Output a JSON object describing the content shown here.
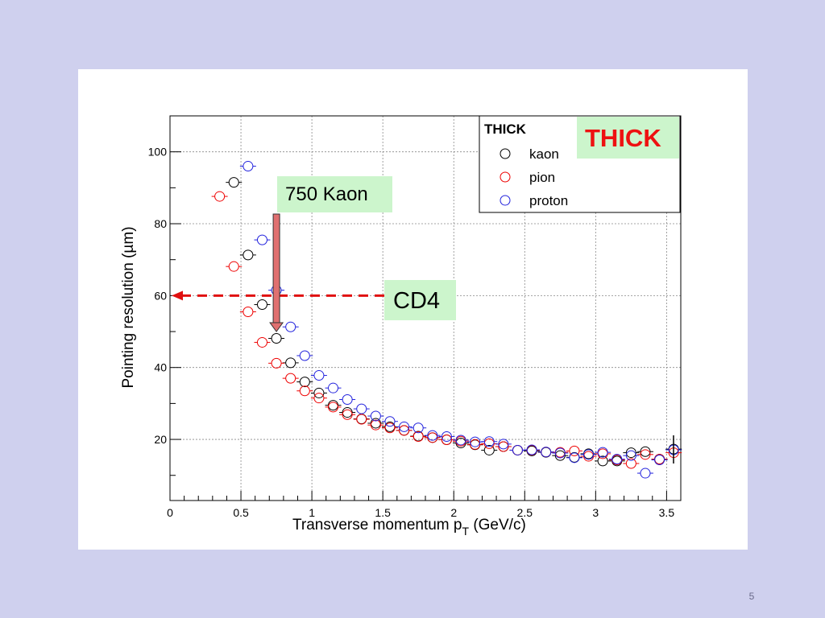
{
  "slide": {
    "background": "#cfd0ee",
    "page_number": "5"
  },
  "annotations": {
    "kaon_label": "750 Kaon",
    "cd4_label": "CD4",
    "thick_label": "THICK",
    "note_background": "#ccf5cc",
    "thick_color": "#ee1111",
    "arrow_color": "#e07070",
    "dashed_line_color": "#e01010",
    "dashed_line_y": 60,
    "arrow_x": 0.75
  },
  "chart_data": {
    "type": "scatter",
    "title": "",
    "xlabel": "Transverse momentum p_T (GeV/c)",
    "xlabel_main": "Transverse momentum p",
    "xlabel_sub": "T",
    "xlabel_tail": " (GeV/c)",
    "ylabel": "Pointing resolution (µm)",
    "xlim": [
      0,
      3.6
    ],
    "ylim": [
      3,
      110
    ],
    "x_ticks": [
      0,
      0.5,
      1,
      1.5,
      2,
      2.5,
      3,
      3.5
    ],
    "x_tick_labels": [
      "0",
      "0.5",
      "1",
      "1.5",
      "2",
      "2.5",
      "3",
      "3.5"
    ],
    "y_ticks": [
      20,
      40,
      60,
      80,
      100
    ],
    "y_tick_labels": [
      "20",
      "40",
      "60",
      "80",
      "100"
    ],
    "grid": true,
    "legend": {
      "title": "THICK",
      "position": "top-right"
    },
    "series": [
      {
        "name": "kaon",
        "color": "#000000",
        "x": [
          0.45,
          0.55,
          0.65,
          0.75,
          0.85,
          0.95,
          1.05,
          1.15,
          1.25,
          1.35,
          1.45,
          1.55,
          1.65,
          1.75,
          1.85,
          1.95,
          2.05,
          2.15,
          2.25,
          2.35,
          2.45,
          2.55,
          2.65,
          2.75,
          2.85,
          2.95,
          3.05,
          3.15,
          3.25,
          3.35,
          3.45,
          3.55
        ],
        "y": [
          91.5,
          71.3,
          57.5,
          48.1,
          41.3,
          36.0,
          32.9,
          29.5,
          27.5,
          25.7,
          24.5,
          23.5,
          22.5,
          20.9,
          20.5,
          19.9,
          19.0,
          18.5,
          17.0,
          18.0,
          17.0,
          16.8,
          16.4,
          15.5,
          15.0,
          16.0,
          14.0,
          14.0,
          16.3,
          16.6,
          14.5,
          17.3
        ]
      },
      {
        "name": "pion",
        "color": "#ee0000",
        "x": [
          0.35,
          0.45,
          0.55,
          0.65,
          0.75,
          0.85,
          0.95,
          1.05,
          1.15,
          1.25,
          1.35,
          1.45,
          1.55,
          1.65,
          1.75,
          1.85,
          1.95,
          2.05,
          2.15,
          2.25,
          2.35,
          2.45,
          2.55,
          2.65,
          2.75,
          2.85,
          2.95,
          3.05,
          3.15,
          3.25,
          3.35,
          3.45,
          3.55
        ],
        "y": [
          87.6,
          68.1,
          55.5,
          47.0,
          41.2,
          37.0,
          33.5,
          31.5,
          29.0,
          26.9,
          25.6,
          24.0,
          23.2,
          22.5,
          20.8,
          20.5,
          19.9,
          19.5,
          18.6,
          18.8,
          18.0,
          17.0,
          17.0,
          16.5,
          16.4,
          16.8,
          15.3,
          16.0,
          14.3,
          13.3,
          15.8,
          14.5,
          16.3
        ]
      },
      {
        "name": "proton",
        "color": "#2222dd",
        "x": [
          0.55,
          0.65,
          0.75,
          0.85,
          0.95,
          1.05,
          1.15,
          1.25,
          1.35,
          1.45,
          1.55,
          1.65,
          1.75,
          1.85,
          1.95,
          2.05,
          2.15,
          2.25,
          2.35,
          2.45,
          2.55,
          2.65,
          2.75,
          2.85,
          2.95,
          3.05,
          3.15,
          3.25,
          3.35,
          3.45,
          3.55
        ],
        "y": [
          96.0,
          75.5,
          61.5,
          51.3,
          43.3,
          37.8,
          34.3,
          31.1,
          28.5,
          26.5,
          25.0,
          23.5,
          23.2,
          21.1,
          20.8,
          19.8,
          19.3,
          19.4,
          18.7,
          17.0,
          17.1,
          16.5,
          16.2,
          14.9,
          15.8,
          16.4,
          14.5,
          15.5,
          10.6,
          14.3,
          17.1
        ]
      }
    ]
  }
}
